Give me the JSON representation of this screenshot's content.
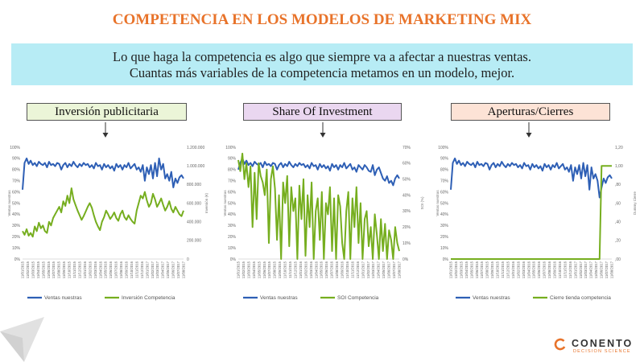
{
  "title": "COMPETENCIA EN LOS MODELOS DE MARKETING MIX",
  "banner": {
    "line1": "Lo que haga la competencia es algo que siempre va a afectar a nuestras ventas.",
    "line2": "Cuantas más variables de la competencia metamos en un modelo, mejor."
  },
  "panels": [
    {
      "label": "Inversión publicitaria",
      "color": "#ebf5d8"
    },
    {
      "label": "Share Of Investment",
      "color": "#ead7f0"
    },
    {
      "label": "Aperturas/Cierres",
      "color": "#fde3d6"
    }
  ],
  "logo": {
    "main": "CONENTO",
    "sub": "DECISION SCIENCE"
  },
  "colors": {
    "accent": "#e8732a",
    "sales": "#2e5fb5",
    "competition": "#76ae1f",
    "banner": "#b7ecf5"
  },
  "chart_data": [
    {
      "type": "line",
      "x_tick_labels": [
        "11/01/2015",
        "11/02/2015",
        "11/03/2015",
        "11/04/2015",
        "11/05/2015",
        "11/06/2015",
        "11/07/2015",
        "11/08/2015",
        "11/09/2015",
        "11/10/2015",
        "11/11/2015",
        "11/12/2015",
        "11/01/2016",
        "11/02/2016",
        "11/03/2016",
        "11/04/2016",
        "11/05/2016",
        "11/06/2016",
        "11/07/2016",
        "11/08/2016",
        "11/09/2016",
        "11/10/2016",
        "11/11/2016",
        "11/12/2016",
        "11/01/2017",
        "11/02/2017",
        "11/03/2017",
        "11/04/2017",
        "11/05/2017",
        "11/06/2017",
        "11/07/2017",
        "11/08/2017"
      ],
      "y_left": {
        "label": "Ventas nuestras",
        "ticks": [
          "0%",
          "10%",
          "20%",
          "30%",
          "40%",
          "50%",
          "60%",
          "70%",
          "80%",
          "90%",
          "100%"
        ],
        "range": [
          0,
          100
        ]
      },
      "y_right": {
        "label": "Inversión (€)",
        "ticks": [
          "0",
          "200.000",
          "400.000",
          "600.000",
          "800.000",
          "1.000.000",
          "1.200.000"
        ],
        "range": [
          0,
          1200000
        ]
      },
      "series": [
        {
          "name": "Ventas nuestras",
          "axis": "left",
          "values": [
            62,
            86,
            90,
            85,
            88,
            84,
            86,
            83,
            87,
            85,
            84,
            86,
            82,
            87,
            84,
            85,
            83,
            86,
            85,
            80,
            84,
            86,
            82,
            85,
            83,
            87,
            84,
            82,
            85,
            83,
            86,
            84,
            85,
            82,
            84,
            81,
            86,
            83,
            84,
            80,
            85,
            82,
            84,
            81,
            83,
            79,
            85,
            82,
            84,
            80,
            84,
            82,
            86,
            81,
            83,
            85,
            80,
            82,
            78,
            84,
            70,
            82,
            76,
            84,
            72,
            86,
            74,
            90,
            80,
            85,
            72,
            76,
            70,
            78,
            64,
            72,
            68,
            73,
            75,
            72
          ]
        },
        {
          "name": "Inversión Competencia",
          "axis": "right",
          "values": [
            300000,
            260000,
            320000,
            250000,
            280000,
            240000,
            350000,
            300000,
            390000,
            330000,
            360000,
            300000,
            280000,
            400000,
            360000,
            440000,
            480000,
            520000,
            560000,
            500000,
            620000,
            570000,
            680000,
            600000,
            760000,
            640000,
            580000,
            520000,
            470000,
            420000,
            460000,
            510000,
            560000,
            600000,
            550000,
            470000,
            400000,
            350000,
            310000,
            400000,
            450000,
            520000,
            480000,
            430000,
            460000,
            500000,
            440000,
            410000,
            480000,
            520000,
            450000,
            420000,
            470000,
            430000,
            400000,
            380000,
            520000,
            600000,
            680000,
            650000,
            720000,
            630000,
            560000,
            600000,
            700000,
            640000,
            560000,
            600000,
            650000,
            580000,
            520000,
            560000,
            620000,
            540000,
            500000,
            560000,
            520000,
            480000,
            460000,
            520000
          ]
        }
      ]
    },
    {
      "type": "line",
      "x_tick_labels": [
        "11/01/2015",
        "11/02/2015",
        "11/03/2015",
        "11/04/2015",
        "11/05/2015",
        "11/06/2015",
        "11/07/2015",
        "11/08/2015",
        "11/09/2015",
        "11/10/2015",
        "11/11/2015",
        "11/12/2015",
        "11/01/2016",
        "11/02/2016",
        "11/03/2016",
        "11/04/2016",
        "11/05/2016",
        "11/06/2016",
        "11/07/2016",
        "11/08/2016",
        "11/09/2016",
        "11/10/2016",
        "11/11/2016",
        "11/12/2016",
        "11/01/2017",
        "11/02/2017",
        "11/03/2017",
        "11/04/2017",
        "11/05/2017",
        "11/06/2017",
        "11/07/2017",
        "11/08/2017"
      ],
      "y_left": {
        "label": "Ventas nuestras",
        "ticks": [
          "0%",
          "10%",
          "20%",
          "30%",
          "40%",
          "50%",
          "60%",
          "70%",
          "80%",
          "90%",
          "100%"
        ],
        "range": [
          0,
          100
        ]
      },
      "y_right": {
        "label": "SOI (%)",
        "ticks": [
          "0%",
          "10%",
          "20%",
          "30%",
          "40%",
          "50%",
          "60%",
          "70%"
        ],
        "range": [
          0,
          70
        ]
      },
      "series": [
        {
          "name": "Ventas nuestras",
          "axis": "left",
          "values": [
            80,
            86,
            90,
            85,
            88,
            84,
            86,
            83,
            87,
            85,
            84,
            86,
            82,
            87,
            84,
            85,
            83,
            86,
            85,
            80,
            84,
            86,
            82,
            85,
            83,
            87,
            84,
            82,
            85,
            83,
            86,
            84,
            85,
            82,
            84,
            81,
            86,
            83,
            84,
            80,
            85,
            82,
            84,
            81,
            83,
            79,
            85,
            82,
            84,
            80,
            84,
            82,
            86,
            81,
            83,
            85,
            80,
            82,
            78,
            84,
            82,
            80,
            84,
            82,
            79,
            78,
            84,
            75,
            80,
            82,
            77,
            72,
            70,
            74,
            68,
            70,
            66,
            72,
            75,
            72
          ]
        },
        {
          "name": "SOI Competencia",
          "axis": "right",
          "values": [
            62,
            55,
            66,
            50,
            60,
            45,
            58,
            20,
            54,
            25,
            60,
            52,
            48,
            40,
            56,
            10,
            50,
            58,
            44,
            12,
            40,
            0,
            48,
            35,
            52,
            8,
            45,
            30,
            38,
            0,
            46,
            25,
            50,
            2,
            40,
            20,
            48,
            0,
            30,
            38,
            12,
            42,
            0,
            35,
            28,
            45,
            5,
            38,
            0,
            40,
            33,
            10,
            0,
            30,
            42,
            0,
            38,
            20,
            45,
            10,
            35,
            0,
            25,
            30,
            8,
            20,
            0,
            28,
            15,
            0,
            25,
            5,
            22,
            0,
            18,
            12,
            0,
            20,
            10,
            5
          ]
        }
      ]
    },
    {
      "type": "line",
      "x_tick_labels": [
        "11/01/2015",
        "11/02/2015",
        "11/03/2015",
        "11/04/2015",
        "11/05/2015",
        "11/06/2015",
        "11/07/2015",
        "11/08/2015",
        "11/09/2015",
        "11/10/2015",
        "11/11/2015",
        "11/12/2015",
        "11/01/2016",
        "11/02/2016",
        "11/03/2016",
        "11/04/2016",
        "11/05/2016",
        "11/06/2016",
        "11/07/2016",
        "11/08/2016",
        "11/09/2016",
        "11/10/2016",
        "11/11/2016",
        "11/12/2016",
        "11/01/2017",
        "11/02/2017",
        "11/03/2017",
        "11/04/2017",
        "11/05/2017",
        "11/06/2017",
        "11/07/2017",
        "11/08/2017"
      ],
      "y_left": {
        "label": "Ventas nuestras",
        "ticks": [
          "0%",
          "10%",
          "20%",
          "30%",
          "40%",
          "50%",
          "60%",
          "70%",
          "80%",
          "90%",
          "100%"
        ],
        "range": [
          0,
          100
        ]
      },
      "y_right": {
        "label": "Dummy Cierre",
        "ticks": [
          ",00",
          ",20",
          ",40",
          ",60",
          ",80",
          "1,00",
          "1,20"
        ],
        "range": [
          0,
          1.2
        ]
      },
      "series": [
        {
          "name": "Ventas nuestras",
          "axis": "left",
          "values": [
            62,
            86,
            90,
            85,
            88,
            84,
            86,
            83,
            87,
            85,
            84,
            86,
            82,
            87,
            84,
            85,
            83,
            86,
            85,
            80,
            84,
            86,
            82,
            85,
            83,
            87,
            84,
            82,
            85,
            83,
            86,
            84,
            85,
            82,
            84,
            81,
            86,
            83,
            84,
            80,
            85,
            82,
            84,
            81,
            83,
            79,
            85,
            82,
            84,
            80,
            84,
            82,
            86,
            81,
            83,
            85,
            80,
            82,
            78,
            84,
            70,
            82,
            76,
            84,
            72,
            86,
            74,
            84,
            62,
            82,
            72,
            76,
            70,
            55,
            64,
            72,
            68,
            73,
            75,
            72
          ]
        },
        {
          "name": "Cierre tienda competencia",
          "axis": "right",
          "values": [
            0,
            0,
            0,
            0,
            0,
            0,
            0,
            0,
            0,
            0,
            0,
            0,
            0,
            0,
            0,
            0,
            0,
            0,
            0,
            0,
            0,
            0,
            0,
            0,
            0,
            0,
            0,
            0,
            0,
            0,
            0,
            0,
            0,
            0,
            0,
            0,
            0,
            0,
            0,
            0,
            0,
            0,
            0,
            0,
            0,
            0,
            0,
            0,
            0,
            0,
            0,
            0,
            0,
            0,
            0,
            0,
            0,
            0,
            0,
            0,
            0,
            0,
            0,
            0,
            0,
            0,
            0,
            0,
            0,
            0,
            0,
            0,
            0,
            0,
            1,
            1,
            1,
            1,
            1,
            1
          ]
        }
      ]
    }
  ]
}
